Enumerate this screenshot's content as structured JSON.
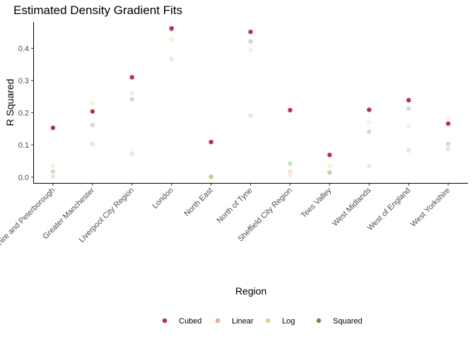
{
  "chart_data": {
    "type": "scatter",
    "title": "Estimated Density Gradient Fits",
    "xlabel": "Region",
    "ylabel": "R Squared",
    "categories": [
      "Cambridgeshire and Peterborough",
      "Greater Manchester",
      "Liverpool City Region",
      "London",
      "North East",
      "North of Tyne",
      "Sheffield City Region",
      "Tees Valley",
      "West Midlands",
      "West of England",
      "West Yorkshire"
    ],
    "ylim": [
      -0.018,
      0.482
    ],
    "yticks": [
      0.0,
      0.1,
      0.2,
      0.3,
      0.4
    ],
    "ytick_labels": [
      "0.0",
      "0.1",
      "0.2",
      "0.3",
      "0.4"
    ],
    "grid": false,
    "legend_position": "bottom",
    "series": [
      {
        "name": "Cubed",
        "color": "#C8284F",
        "opacity": 1.0,
        "values": [
          0.153,
          0.204,
          0.31,
          0.462,
          0.109,
          0.451,
          0.208,
          0.069,
          0.209,
          0.239,
          0.166
        ]
      },
      {
        "name": "Linear",
        "color": "#F4A582",
        "opacity": 0.35,
        "values": [
          0.002,
          0.103,
          0.073,
          0.367,
          0.001,
          0.191,
          0.017,
          0.014,
          0.034,
          0.083,
          0.087
        ]
      },
      {
        "name": "Log",
        "color": "#E8CF6A",
        "opacity": 0.3,
        "values": [
          0.034,
          0.23,
          0.26,
          0.428,
          0.001,
          0.395,
          0.004,
          0.034,
          0.17,
          0.157,
          0.183
        ]
      },
      {
        "name": "Squared",
        "color": "#6B8E3A",
        "opacity": 0.3,
        "values": [
          0.017,
          0.162,
          0.242,
          0.458,
          0.001,
          0.421,
          0.042,
          0.014,
          0.141,
          0.213,
          0.103
        ]
      }
    ]
  }
}
